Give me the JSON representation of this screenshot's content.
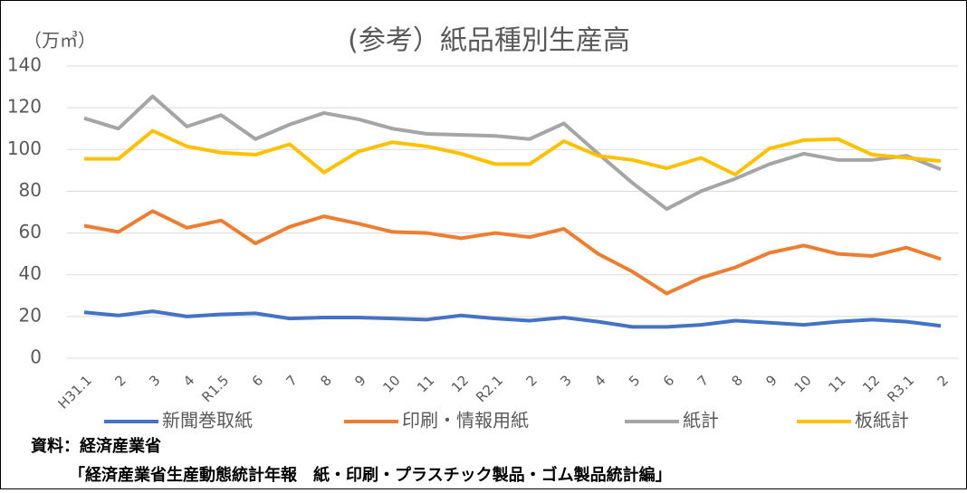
{
  "chart_data": {
    "type": "line",
    "title": "(参考）紙品種別生産高",
    "y_label": "（万㎥）",
    "categories": [
      "H31.1",
      "2",
      "3",
      "4",
      "R1.5",
      "6",
      "7",
      "8",
      "9",
      "10",
      "11",
      "12",
      "R2.1",
      "2",
      "3",
      "4",
      "5",
      "6",
      "7",
      "8",
      "9",
      "10",
      "11",
      "12",
      "R3.1",
      "2"
    ],
    "series": [
      {
        "name": "新聞巻取紙",
        "color": "#4472c4",
        "values": [
          22,
          20.5,
          22.5,
          20,
          21,
          21.5,
          19,
          19.5,
          19.5,
          19,
          18.5,
          20.5,
          19,
          18,
          19.5,
          17.5,
          15,
          15,
          16,
          18,
          17,
          16,
          17.5,
          18.5,
          17.5,
          15.5
        ]
      },
      {
        "name": "印刷・情報用紙",
        "color": "#ed7d31",
        "values": [
          63.5,
          60.5,
          70.5,
          62.5,
          66,
          55,
          63,
          68,
          64.5,
          60.5,
          60,
          57.5,
          60,
          58,
          62,
          50,
          41.5,
          31,
          38.5,
          43.5,
          50.5,
          54,
          50,
          49,
          53,
          47.5
        ]
      },
      {
        "name": "紙計",
        "color": "#a5a5a5",
        "values": [
          115,
          110,
          125.5,
          111,
          116.5,
          105,
          112,
          117.5,
          114.5,
          110,
          107.5,
          107,
          106.5,
          105,
          112.5,
          98,
          84,
          71.5,
          80,
          86,
          93,
          98,
          95,
          95,
          97,
          90.5
        ]
      },
      {
        "name": "板紙計",
        "color": "#ffc000",
        "values": [
          95.5,
          95.5,
          109,
          101.5,
          98.5,
          97.5,
          102.5,
          89,
          99,
          103.5,
          101.5,
          98,
          93,
          93,
          104,
          97,
          95,
          91,
          96,
          88,
          100.5,
          104.5,
          105,
          97.5,
          96,
          94.5
        ]
      }
    ],
    "ylim": [
      0,
      140
    ],
    "yticks": [
      0,
      20,
      40,
      60,
      80,
      100,
      120,
      140
    ],
    "grid": true,
    "legend": "bottom",
    "source": [
      "資料：経済産業省",
      "「経済産業省生産動態統計年報　紙・印刷・プラスチック製品・ゴム製品統計編」"
    ]
  }
}
